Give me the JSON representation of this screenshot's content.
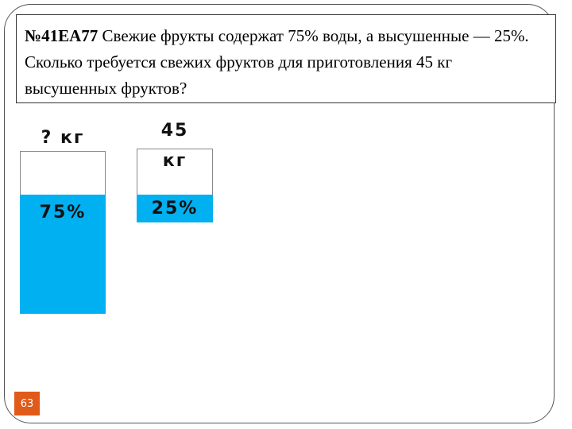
{
  "problem": {
    "code": "№41ЕА77",
    "text": "Свежие фрукты содержат 75% воды, а высушенные — 25%. Сколько требуется свежих фруктов для приготовления 45 кг высушенных фруктов?"
  },
  "fresh": {
    "label": "? кг",
    "water": "75%"
  },
  "dried": {
    "label": "45 кг",
    "water": "25%"
  },
  "page_number": "63"
}
